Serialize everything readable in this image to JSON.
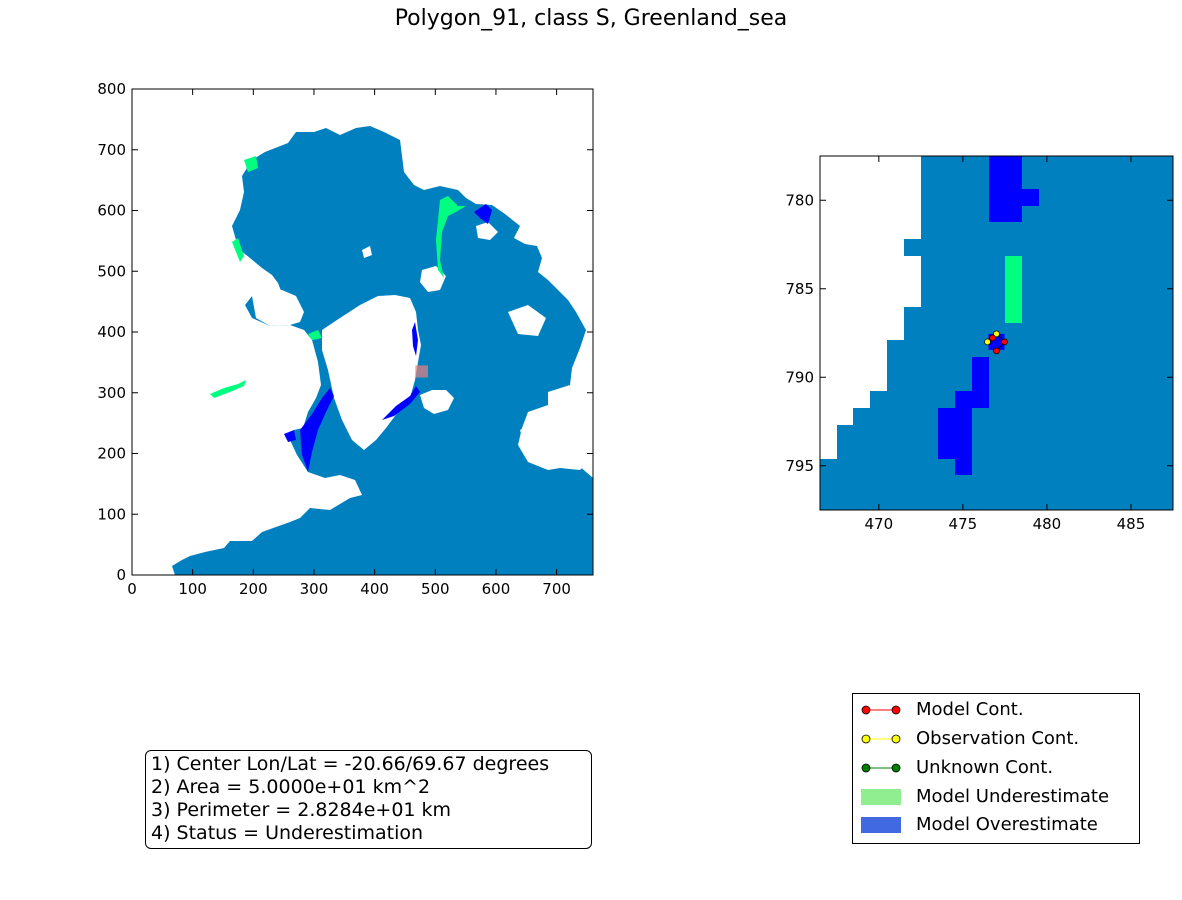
{
  "title": "Polygon_91, class S, Greenland_sea",
  "colors": {
    "ocean": "#0080bf",
    "land": "#ffffff",
    "overestimate_cell": "#0000ff",
    "underestimate_cell": "#00ff80",
    "highlight": "#f08080",
    "legend_under": "#90ee90",
    "legend_over": "#4169e1",
    "model_cont": "#ff0000",
    "obs_cont": "#ffff00",
    "unknown_cont": "#008000"
  },
  "chart_data": [
    {
      "type": "heatmap",
      "name": "overview-map",
      "title": "",
      "xlim": [
        0,
        760
      ],
      "ylim": [
        0,
        800
      ],
      "xticks": [
        "0",
        "100",
        "200",
        "300",
        "400",
        "500",
        "600",
        "700"
      ],
      "yticks": [
        "0",
        "100",
        "200",
        "300",
        "400",
        "500",
        "600",
        "700",
        "800"
      ],
      "highlight_box": {
        "x": [
          467,
          488
        ],
        "y": [
          325,
          345
        ]
      }
    },
    {
      "type": "heatmap",
      "name": "zoom-map",
      "title": "",
      "xlim": [
        466.5,
        487.5
      ],
      "ylim": [
        797.5,
        777.5
      ],
      "xticks": [
        "470",
        "475",
        "480",
        "485"
      ],
      "yticks": [
        "780",
        "785",
        "790",
        "795"
      ],
      "polygon_center": {
        "x": 477,
        "y": 788
      }
    }
  ],
  "info": {
    "line1": "1) Center Lon/Lat = -20.66/69.67 degrees",
    "line2": "2) Area = 5.0000e+01 km^2",
    "line3": "3) Perimeter = 2.8284e+01 km",
    "line4": "4) Status = Underestimation"
  },
  "legend": {
    "model_cont": "Model Cont.",
    "observation_cont": "Observation Cont.",
    "unknown_cont": "Unknown Cont.",
    "model_underestimate": "Model Underestimate",
    "model_overestimate": "Model Overestimate"
  }
}
